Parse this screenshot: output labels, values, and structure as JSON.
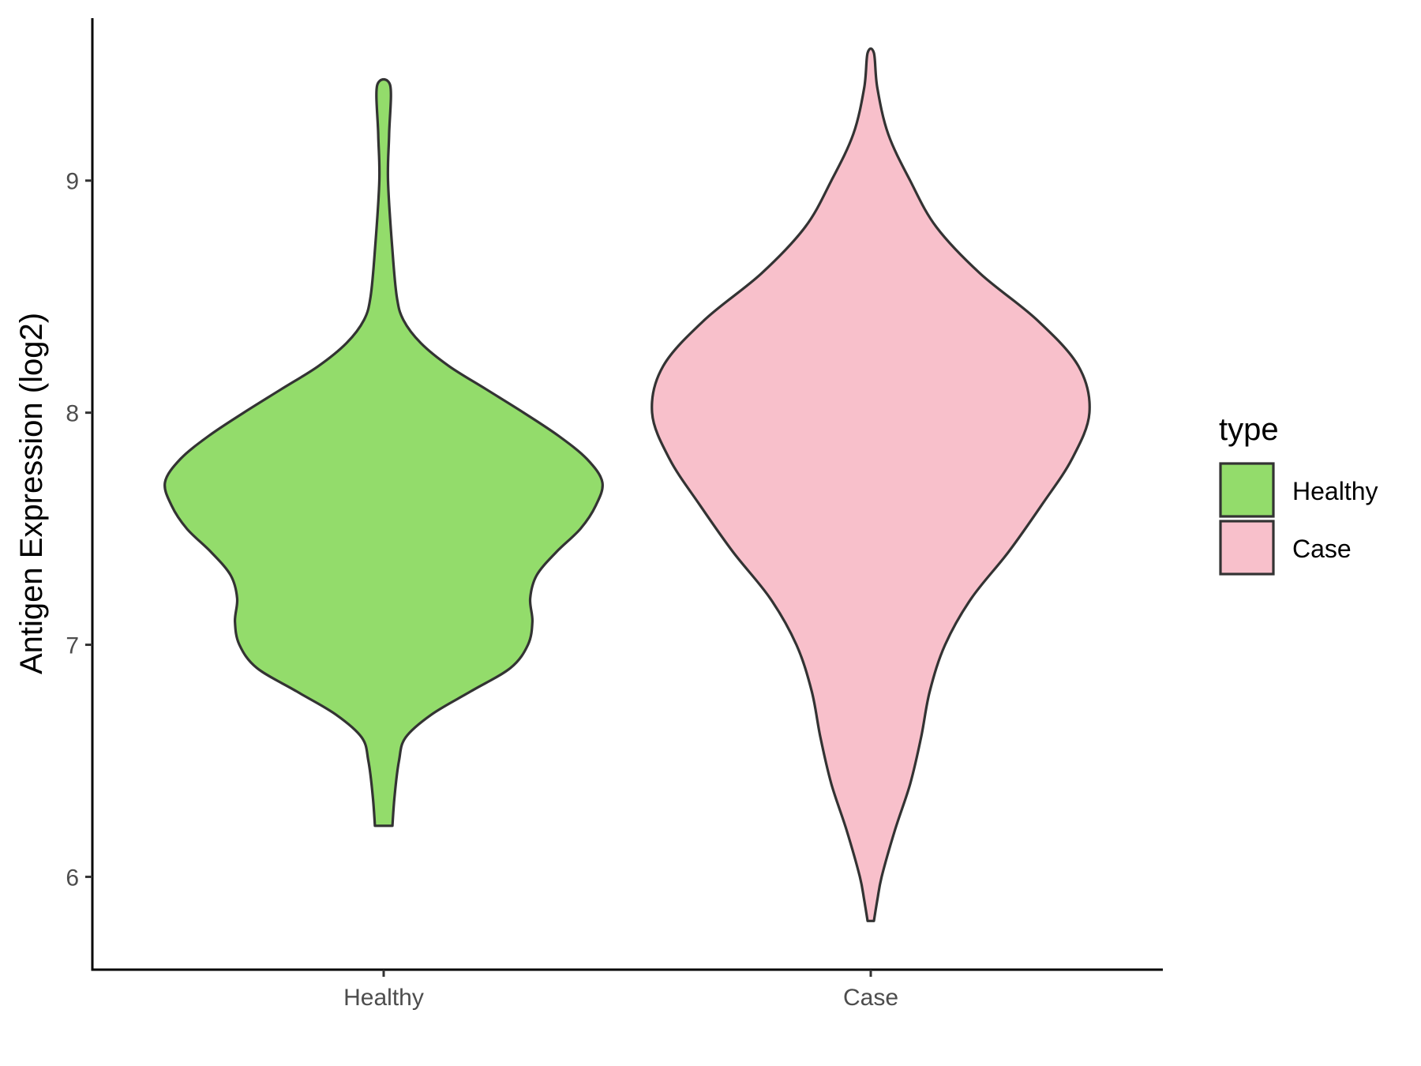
{
  "chart_data": {
    "type": "violin",
    "xlabel": "",
    "ylabel": "Antigen Expression (log2)",
    "ylim": [
      5.6,
      9.7
    ],
    "yticks": [
      "6",
      "7",
      "8",
      "9"
    ],
    "categories": [
      "Healthy",
      "Case"
    ],
    "grid": false,
    "legend": {
      "title": "type",
      "placement": "right",
      "entries": [
        {
          "label": "Healthy",
          "color": "#93dc6b"
        },
        {
          "label": "Case",
          "color": "#f8c0cb"
        }
      ]
    },
    "series": [
      {
        "name": "Healthy",
        "color": "#93dc6b",
        "min": 6.22,
        "max": 9.41,
        "density": [
          [
            6.22,
            0.04
          ],
          [
            6.35,
            0.05
          ],
          [
            6.5,
            0.07
          ],
          [
            6.6,
            0.1
          ],
          [
            6.7,
            0.22
          ],
          [
            6.8,
            0.4
          ],
          [
            6.9,
            0.58
          ],
          [
            7.0,
            0.66
          ],
          [
            7.1,
            0.68
          ],
          [
            7.2,
            0.67
          ],
          [
            7.3,
            0.7
          ],
          [
            7.4,
            0.79
          ],
          [
            7.5,
            0.9
          ],
          [
            7.6,
            0.97
          ],
          [
            7.7,
            1.0
          ],
          [
            7.8,
            0.93
          ],
          [
            7.9,
            0.8
          ],
          [
            8.0,
            0.64
          ],
          [
            8.1,
            0.47
          ],
          [
            8.2,
            0.3
          ],
          [
            8.3,
            0.17
          ],
          [
            8.4,
            0.09
          ],
          [
            8.5,
            0.06
          ],
          [
            8.7,
            0.04
          ],
          [
            9.0,
            0.02
          ],
          [
            9.2,
            0.025
          ],
          [
            9.41,
            0.03
          ]
        ]
      },
      {
        "name": "Case",
        "color": "#f8c0cb",
        "min": 5.81,
        "max": 9.55,
        "density": [
          [
            5.81,
            0.01
          ],
          [
            5.9,
            0.03
          ],
          [
            6.0,
            0.05
          ],
          [
            6.2,
            0.11
          ],
          [
            6.4,
            0.18
          ],
          [
            6.6,
            0.23
          ],
          [
            6.8,
            0.27
          ],
          [
            7.0,
            0.34
          ],
          [
            7.2,
            0.46
          ],
          [
            7.4,
            0.63
          ],
          [
            7.6,
            0.78
          ],
          [
            7.8,
            0.92
          ],
          [
            8.0,
            1.0
          ],
          [
            8.2,
            0.95
          ],
          [
            8.4,
            0.76
          ],
          [
            8.6,
            0.5
          ],
          [
            8.8,
            0.3
          ],
          [
            9.0,
            0.18
          ],
          [
            9.2,
            0.08
          ],
          [
            9.4,
            0.03
          ],
          [
            9.55,
            0.01
          ]
        ]
      }
    ]
  }
}
